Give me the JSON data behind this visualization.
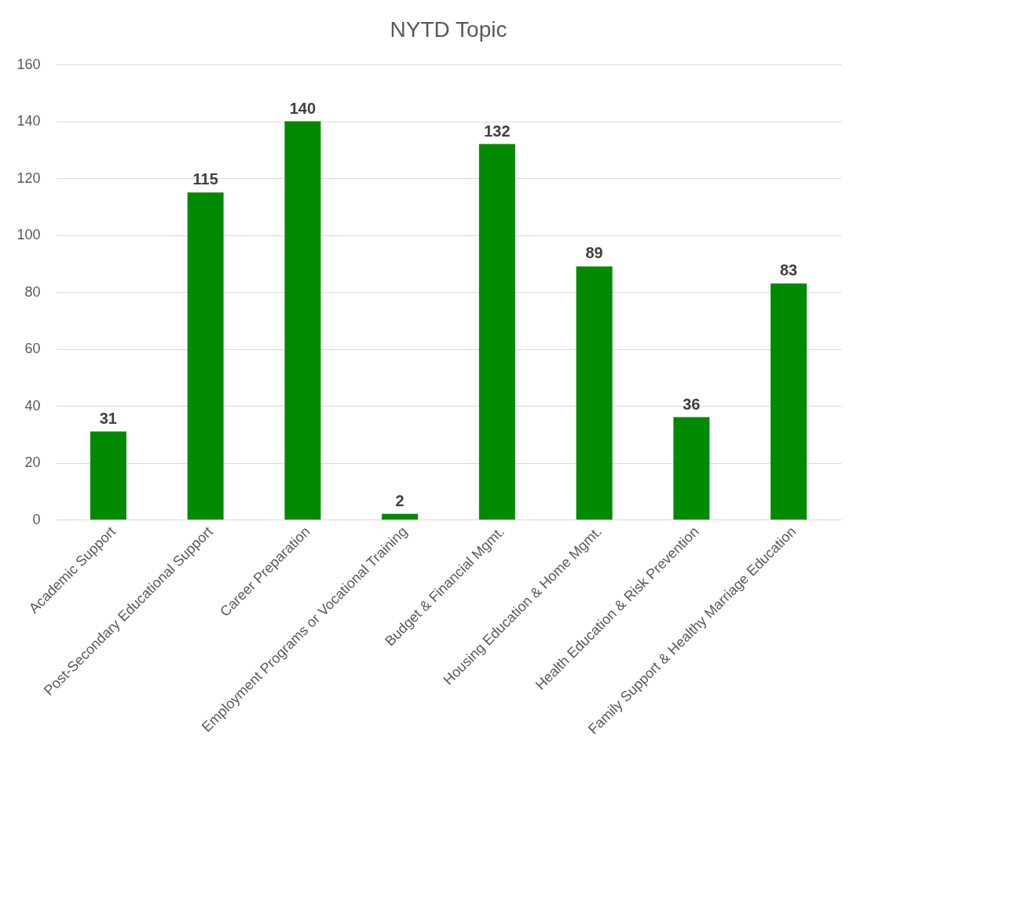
{
  "chart_data": {
    "type": "bar",
    "title": "NYTD Topic",
    "categories": [
      "Academic Support",
      "Post-Secondary Educational Support",
      "Career Preparation",
      "Employment Programs or Vocational Training",
      "Budget & Financial Mgmt.",
      "Housing Education & Home Mgmt.",
      "Health Education & Risk Prevention",
      "Family Support & Healthy Marriage Education"
    ],
    "values": [
      31,
      115,
      140,
      2,
      132,
      89,
      36,
      83
    ],
    "color": "#008a00",
    "ylim": [
      0,
      160
    ],
    "yticks": [
      0,
      20,
      40,
      60,
      80,
      100,
      120,
      140,
      160
    ],
    "grid": "y",
    "data_labels": true
  }
}
